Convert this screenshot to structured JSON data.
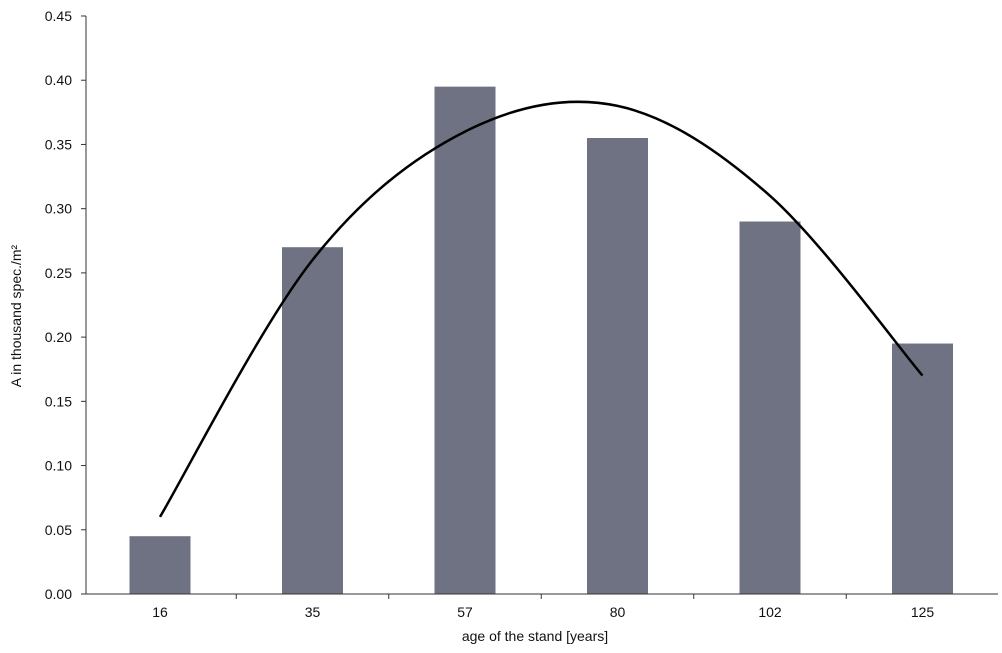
{
  "chart_data": {
    "type": "bar",
    "categories": [
      "16",
      "35",
      "57",
      "80",
      "102",
      "125"
    ],
    "x_ages": [
      16,
      35,
      57,
      80,
      102,
      125
    ],
    "values": [
      0.045,
      0.27,
      0.395,
      0.355,
      0.29,
      0.195
    ],
    "trendline": {
      "type": "polynomial-2",
      "points": [
        {
          "x": 16,
          "y": 0.06
        },
        {
          "x": 35,
          "y": 0.26
        },
        {
          "x": 57,
          "y": 0.36
        },
        {
          "x": 80,
          "y": 0.38
        },
        {
          "x": 102,
          "y": 0.31
        },
        {
          "x": 125,
          "y": 0.17
        }
      ]
    },
    "title": "",
    "xlabel": "age of the stand [years]",
    "ylabel": "A in thousand spec./m²",
    "ylim": [
      0,
      0.45
    ],
    "yticks": [
      "0.00",
      "0.05",
      "0.10",
      "0.15",
      "0.20",
      "0.25",
      "0.30",
      "0.35",
      "0.40",
      "0.45"
    ],
    "grid": false,
    "legend": "none",
    "colors": {
      "bar": "#6f7283",
      "trend": "#000000",
      "axis": "#333333"
    }
  }
}
